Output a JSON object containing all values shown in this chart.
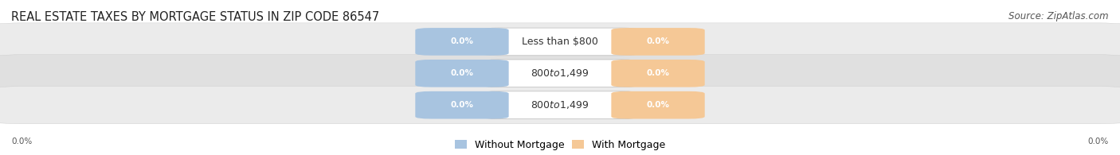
{
  "title": "REAL ESTATE TAXES BY MORTGAGE STATUS IN ZIP CODE 86547",
  "source": "Source: ZipAtlas.com",
  "rows": [
    {
      "label": "Less than $800",
      "without_mortgage": 0.0,
      "with_mortgage": 0.0
    },
    {
      "label": "$800 to $1,499",
      "without_mortgage": 0.0,
      "with_mortgage": 0.0
    },
    {
      "label": "$800 to $1,499",
      "without_mortgage": 0.0,
      "with_mortgage": 0.0
    }
  ],
  "without_mortgage_color": "#a8c4e0",
  "with_mortgage_color": "#f5c896",
  "row_bg_colors": [
    "#ebebeb",
    "#e0e0e0",
    "#ebebeb"
  ],
  "title_fontsize": 10.5,
  "source_fontsize": 8.5,
  "legend_fontsize": 9,
  "value_fontsize": 7.5,
  "label_fontsize": 9,
  "axis_label": "0.0%"
}
